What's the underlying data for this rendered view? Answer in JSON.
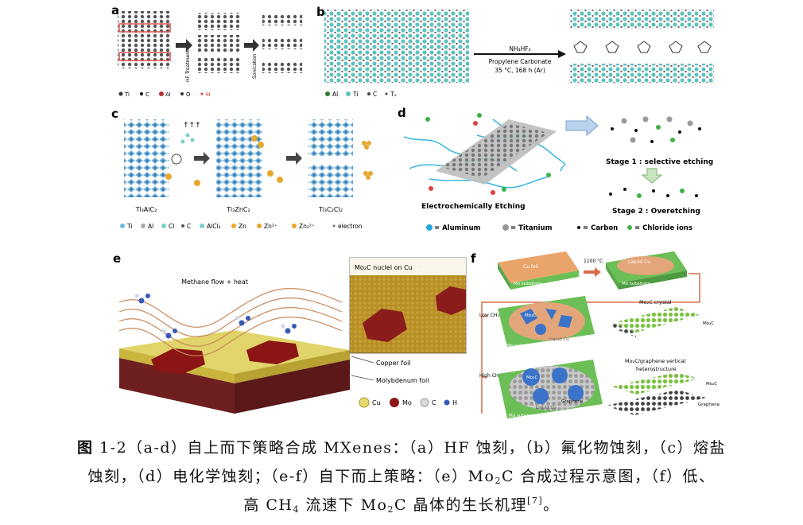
{
  "panels": {
    "a": {
      "letter": "a",
      "step1": "HF Treatment",
      "step2": "Sonication",
      "legend": [
        "Ti",
        "C",
        "Al",
        "O",
        "H"
      ]
    },
    "b": {
      "letter": "b",
      "reagent": "NH₄HF₂",
      "solvent": "Propylene Carbonate",
      "conditions": "35 °C, 168 h (Ar)",
      "legend": [
        "Al",
        "Ti",
        "C",
        "Tₓ"
      ]
    },
    "c": {
      "letter": "c",
      "labels": [
        "Ti₃AlC₂",
        "Ti₃ZnC₂",
        "Ti₃C₂Cl₂"
      ],
      "legend": [
        "Ti",
        "Al",
        "Cl",
        "C",
        "AlCl₃",
        "Zn",
        "Zn²⁺",
        "Zn₂²⁺",
        "electron"
      ]
    },
    "d": {
      "letter": "d",
      "etching": "Electrochemically Etching",
      "stage1": "Stage 1 : selective etching",
      "stage2": "Stage 2 : Overetching",
      "legend": [
        "= Aluminum",
        "= Titanium",
        "= Carbon",
        "= Chloride ions"
      ]
    },
    "e": {
      "letter": "e",
      "flow": "Methane flow + heat",
      "inset": "Mo₂C nuclei on Cu",
      "copper": "Copper foil",
      "moly": "Molybdenum foil",
      "legend": [
        "Cu",
        "Mo",
        "C",
        "H"
      ]
    },
    "f": {
      "letter": "f",
      "cufoil": "Cu foil",
      "temp": "1100 °C",
      "liquid": "Liquid Cu",
      "substrate": "Mo substrate",
      "low": "Low CH₄",
      "high": "High CH₄",
      "mo2c": "Mo₂C",
      "crystal": "Mo₂C crystal",
      "graphene": "Graphene",
      "hetero1": "Mo₂C/graphene vertical",
      "hetero2": "heterostructure"
    }
  },
  "caption": {
    "line1_bold": "图",
    "line1": " 1-2（a-d）自上而下策略合成 MXenes：（a）HF 蚀刻，（b）氟化物蚀刻，（c）熔盐",
    "line2": "蚀刻，（d）电化学蚀刻；（e-f）自下而上策略：（e）Mo",
    "line2_sub": "2",
    "line2_end": "C 合成过程示意图，（f）低、",
    "line3": "高 CH",
    "line3_sub": "4",
    "line3_mid": " 流速下 Mo",
    "line3_sub2": "2",
    "line3_end": "C 晶体的生长机理",
    "line3_ref": "[7]",
    "line3_tail": "。"
  }
}
